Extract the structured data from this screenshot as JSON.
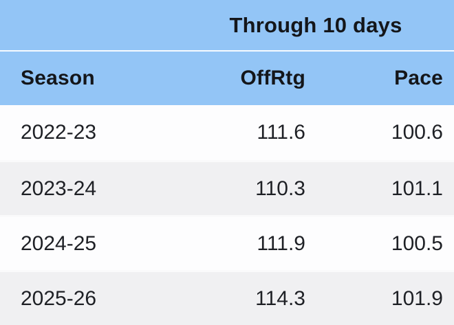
{
  "table": {
    "title": "Through 10 days",
    "columns": {
      "season": "Season",
      "offrtg": "OffRtg",
      "pace": "Pace"
    },
    "rows": [
      {
        "season": "2022-23",
        "offrtg": "111.6",
        "pace": "100.6"
      },
      {
        "season": "2023-24",
        "offrtg": "110.3",
        "pace": "101.1"
      },
      {
        "season": "2024-25",
        "offrtg": "111.9",
        "pace": "100.5"
      },
      {
        "season": "2025-26",
        "offrtg": "114.3",
        "pace": "101.9"
      }
    ]
  },
  "colors": {
    "header_bg": "#93C5F6",
    "row_bg": "#FDFDFE",
    "row_alt_bg": "#F0F0F2",
    "row_separator": "#FAFAFB",
    "header_text": "#14161A",
    "cell_text": "#1E2025"
  },
  "chart_data": {
    "type": "table",
    "title": "Through 10 days",
    "columns": [
      "Season",
      "OffRtg",
      "Pace"
    ],
    "rows": [
      [
        "2022-23",
        111.6,
        100.6
      ],
      [
        "2023-24",
        110.3,
        101.1
      ],
      [
        "2024-25",
        111.9,
        100.5
      ],
      [
        "2025-26",
        114.3,
        101.9
      ]
    ],
    "layout_hints": {
      "numeric_columns_right_aligned": true,
      "zebra_striping": true,
      "title_spans_columns": [
        "OffRtg",
        "Pace"
      ]
    }
  }
}
